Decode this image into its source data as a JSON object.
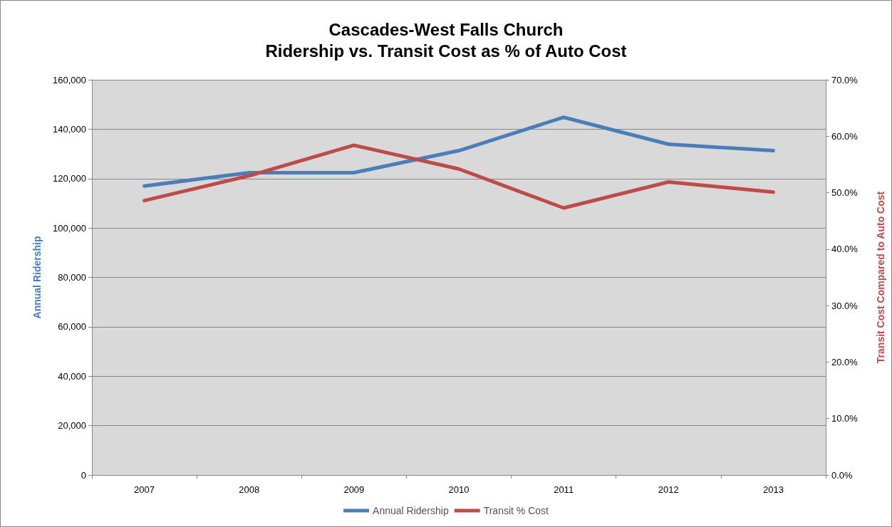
{
  "chart_data": {
    "type": "line",
    "title": "Cascades-West Falls Church\nRidership vs. Transit Cost as % of Auto Cost",
    "ylabel": "Annual Ridership",
    "y2label": "Transit Cost Compared to Auto Cost",
    "categories": [
      "2007",
      "2008",
      "2009",
      "2010",
      "2011",
      "2012",
      "2013"
    ],
    "series": [
      {
        "name": "Annual Ridership",
        "color": "#4a7ebb",
        "values": [
          117000,
          122400,
          122400,
          131300,
          144800,
          133900,
          131300
        ]
      },
      {
        "name": "Transit % Cost",
        "color": "#be4b48",
        "axis": "y2",
        "values": [
          48.6,
          53.0,
          58.4,
          54.2,
          47.3,
          51.9,
          50.1
        ]
      }
    ],
    "ylim": [
      0,
      160000
    ],
    "yticks": [
      {
        "value": 0,
        "label": "0"
      },
      {
        "value": 20000,
        "label": "20,000"
      },
      {
        "value": 40000,
        "label": "40,000"
      },
      {
        "value": 60000,
        "label": "60,000"
      },
      {
        "value": 80000,
        "label": "80,000"
      },
      {
        "value": 100000,
        "label": "100,000"
      },
      {
        "value": 120000,
        "label": "120,000"
      },
      {
        "value": 140000,
        "label": "140,000"
      },
      {
        "value": 160000,
        "label": "160,000"
      }
    ],
    "y2lim": [
      0,
      70
    ],
    "y2ticks": [
      {
        "value": 0,
        "label": "0.0%"
      },
      {
        "value": 10,
        "label": "10.0%"
      },
      {
        "value": 20,
        "label": "20.0%"
      },
      {
        "value": 30,
        "label": "30.0%"
      },
      {
        "value": 40,
        "label": "40.0%"
      },
      {
        "value": 50,
        "label": "50.0%"
      },
      {
        "value": 60,
        "label": "60.0%"
      },
      {
        "value": 70,
        "label": "70.0%"
      }
    ],
    "grid": "y",
    "legend": "bottom",
    "marker": "none",
    "line_style": "solid"
  }
}
